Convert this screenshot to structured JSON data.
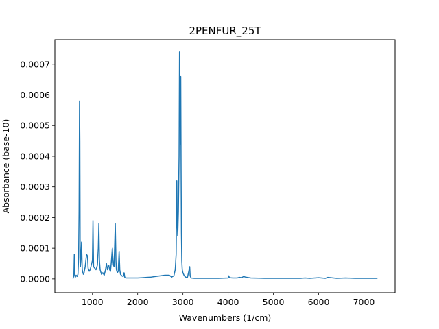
{
  "chart_data": {
    "type": "line",
    "title": "2PENFUR_25T",
    "xlabel": "Wavenumbers (1/cm)",
    "ylabel": "Absorbance (base-10)",
    "xlim": [
      170,
      7690
    ],
    "ylim": [
      -4.5e-05,
      0.00078
    ],
    "xticks": [
      1000,
      2000,
      3000,
      4000,
      5000,
      6000,
      7000
    ],
    "xtick_labels": [
      "1000",
      "2000",
      "3000",
      "4000",
      "5000",
      "6000",
      "7000"
    ],
    "yticks": [
      0,
      0.0001,
      0.0002,
      0.0003,
      0.0004,
      0.0005,
      0.0006,
      0.0007
    ],
    "ytick_labels": [
      "0.0000",
      "0.0001",
      "0.0002",
      "0.0003",
      "0.0004",
      "0.0005",
      "0.0006",
      "0.0007"
    ],
    "grid": false,
    "line_color": "#1f77b4",
    "series": [
      {
        "x": [
          570,
          590,
          600,
          610,
          620,
          640,
          660,
          680,
          695,
          705,
          715,
          722,
          728,
          735,
          745,
          760,
          775,
          790,
          800,
          815,
          840,
          870,
          890,
          905,
          915,
          930,
          950,
          975,
          1000,
          1012,
          1025,
          1050,
          1080,
          1110,
          1130,
          1142,
          1155,
          1170,
          1200,
          1230,
          1260,
          1290,
          1310,
          1330,
          1345,
          1360,
          1380,
          1400,
          1420,
          1440,
          1455,
          1465,
          1478,
          1490,
          1505,
          1520,
          1530,
          1550,
          1570,
          1590,
          1605,
          1620,
          1650,
          1680,
          1700,
          1715,
          1740,
          1800,
          1900,
          2000,
          2100,
          2200,
          2300,
          2400,
          2500,
          2600,
          2700,
          2750,
          2800,
          2830,
          2850,
          2865,
          2875,
          2885,
          2900,
          2915,
          2925,
          2935,
          2945,
          2952,
          2960,
          2967,
          2975,
          2985,
          3000,
          3030,
          3070,
          3100,
          3130,
          3150,
          3160,
          3180,
          3250,
          3400,
          3600,
          3800,
          4000,
          4010,
          4030,
          4100,
          4200,
          4250,
          4300,
          4340,
          4380,
          4500,
          4800,
          5000,
          5300,
          5600,
          5700,
          5800,
          6000,
          6150,
          6200,
          6400,
          6600,
          6800,
          7000,
          7200,
          7300
        ],
        "y": [
          1e-06,
          1e-05,
          8e-05,
          2e-05,
          5e-06,
          1.2e-05,
          8e-06,
          1.5e-05,
          7e-05,
          0.00022,
          0.00058,
          0.00045,
          0.00012,
          4e-05,
          6e-05,
          0.00012,
          3e-05,
          2e-05,
          1.5e-05,
          2e-05,
          4e-05,
          8e-05,
          7.5e-05,
          3.5e-05,
          3e-05,
          2.5e-05,
          3e-05,
          4.5e-05,
          6e-05,
          0.00019,
          4e-05,
          3.5e-05,
          3e-05,
          4.5e-05,
          0.0001,
          0.00018,
          6e-05,
          3e-05,
          1.5e-05,
          2e-05,
          1.2e-05,
          3e-05,
          5e-05,
          3e-05,
          4e-05,
          4.5e-05,
          3e-05,
          2.5e-05,
          6e-05,
          0.0001,
          6e-05,
          4.5e-05,
          4e-05,
          0.0001,
          0.00018,
          6e-05,
          3e-05,
          2e-05,
          2.5e-05,
          9e-05,
          3e-05,
          1.5e-05,
          1e-05,
          8e-06,
          2e-05,
          5e-06,
          3e-06,
          3e-06,
          3e-06,
          3e-06,
          4e-06,
          5e-06,
          6e-06,
          8e-06,
          1e-05,
          1.2e-05,
          1.2e-05,
          6e-06,
          1e-05,
          3e-05,
          8e-05,
          0.00032,
          0.00018,
          0.00014,
          0.00022,
          0.0004,
          0.00074,
          0.0006,
          0.00044,
          0.00066,
          0.00035,
          0.00015,
          6e-05,
          3e-05,
          2e-05,
          1e-05,
          5e-06,
          5e-06,
          2.5e-05,
          4e-05,
          1e-05,
          3e-06,
          2e-06,
          2e-06,
          2e-06,
          2e-06,
          3e-06,
          1e-05,
          4e-06,
          3e-06,
          3e-06,
          5e-06,
          4e-06,
          8e-06,
          6e-06,
          3e-06,
          2e-06,
          2e-06,
          2e-06,
          2e-06,
          3e-06,
          2e-06,
          4e-06,
          2e-06,
          5e-06,
          2e-06,
          3e-06,
          2e-06,
          2e-06,
          2e-06,
          2e-06
        ]
      }
    ]
  }
}
